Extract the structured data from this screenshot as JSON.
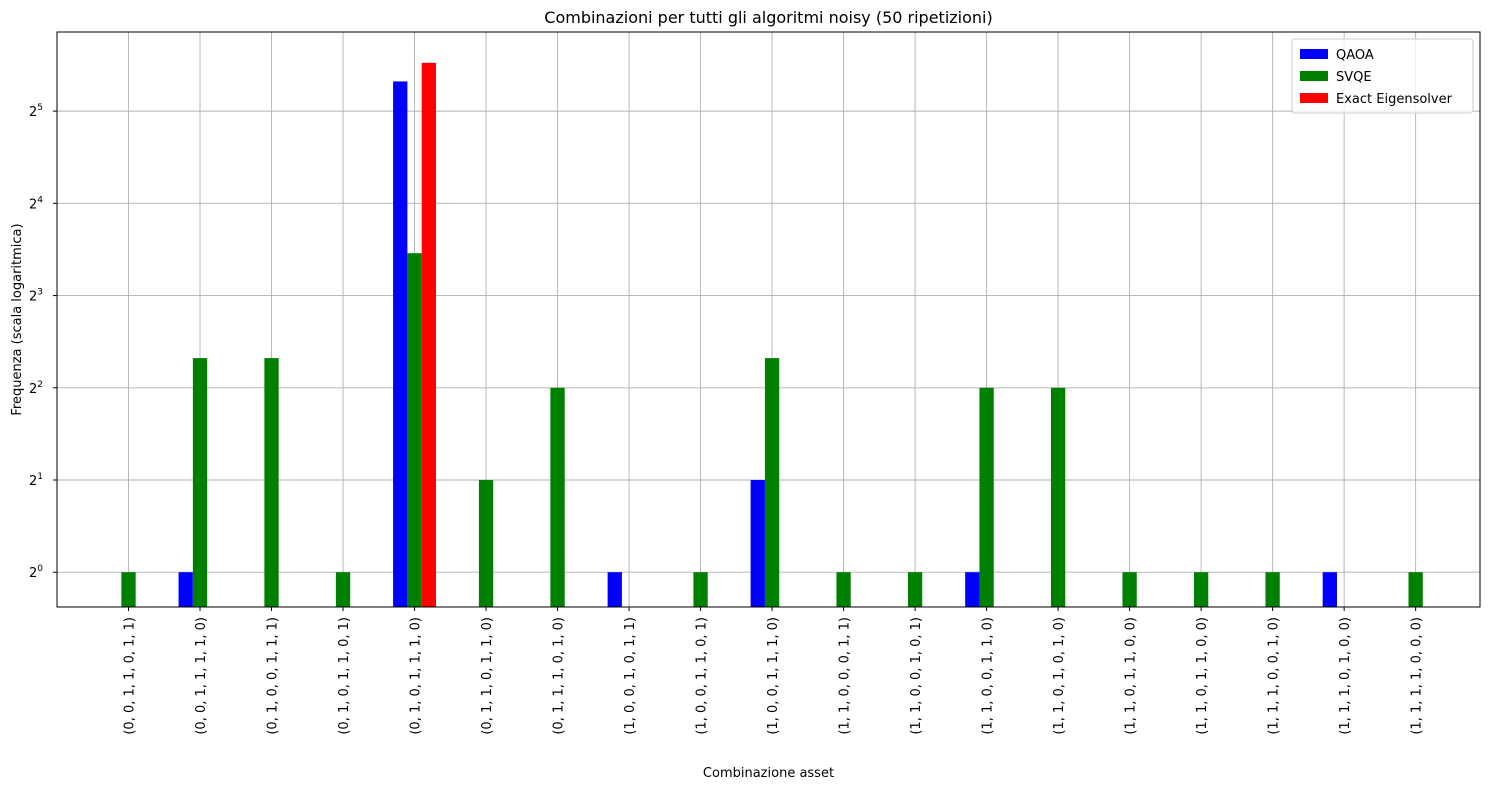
{
  "chart_data": {
    "type": "bar",
    "title": "Combinazioni per tutti gli algoritmi noisy (50 ripetizioni)",
    "xlabel": "Combinazione asset",
    "ylabel": "Frequenza (scala logaritmica)",
    "yscale": "log2",
    "ylim": [
      0.77,
      58
    ],
    "grid": true,
    "legend_position": "top-right",
    "y_ticks": [
      {
        "value": 1,
        "base": "2",
        "exp": "0"
      },
      {
        "value": 2,
        "base": "2",
        "exp": "1"
      },
      {
        "value": 4,
        "base": "2",
        "exp": "2"
      },
      {
        "value": 8,
        "base": "2",
        "exp": "3"
      },
      {
        "value": 16,
        "base": "2",
        "exp": "4"
      },
      {
        "value": 32,
        "base": "2",
        "exp": "5"
      }
    ],
    "categories": [
      "(0, 0, 1, 1, 0, 1, 1)",
      "(0, 0, 1, 1, 1, 1, 0)",
      "(0, 1, 0, 0, 1, 1, 1)",
      "(0, 1, 0, 1, 1, 0, 1)",
      "(0, 1, 0, 1, 1, 1, 0)",
      "(0, 1, 1, 0, 1, 1, 0)",
      "(0, 1, 1, 1, 0, 1, 0)",
      "(1, 0, 0, 1, 0, 1, 1)",
      "(1, 0, 0, 1, 1, 0, 1)",
      "(1, 0, 0, 1, 1, 1, 0)",
      "(1, 1, 0, 0, 0, 1, 1)",
      "(1, 1, 0, 0, 1, 0, 1)",
      "(1, 1, 0, 0, 1, 1, 0)",
      "(1, 1, 0, 1, 0, 1, 0)",
      "(1, 1, 0, 1, 1, 0, 0)",
      "(1, 1, 0, 1, 1, 0, 0)",
      "(1, 1, 1, 0, 0, 1, 0)",
      "(1, 1, 1, 0, 1, 0, 0)",
      "(1, 1, 1, 1, 0, 0, 0)"
    ],
    "series": [
      {
        "name": "QAOA",
        "color": "#0000ff",
        "values": [
          0,
          1,
          0,
          0,
          40,
          0,
          0,
          1,
          0,
          2,
          0,
          0,
          1,
          0,
          0,
          0,
          0,
          1,
          0
        ]
      },
      {
        "name": "SVQE",
        "color": "#008000",
        "values": [
          1,
          5,
          5,
          1,
          11,
          2,
          4,
          0,
          1,
          5,
          1,
          1,
          4,
          4,
          1,
          1,
          1,
          0,
          1
        ]
      },
      {
        "name": "Exact Eigensolver",
        "color": "#ff0000",
        "values": [
          0,
          0,
          0,
          0,
          46,
          0,
          0,
          0,
          0,
          0,
          0,
          0,
          0,
          0,
          0,
          0,
          0,
          0,
          0
        ]
      }
    ]
  }
}
